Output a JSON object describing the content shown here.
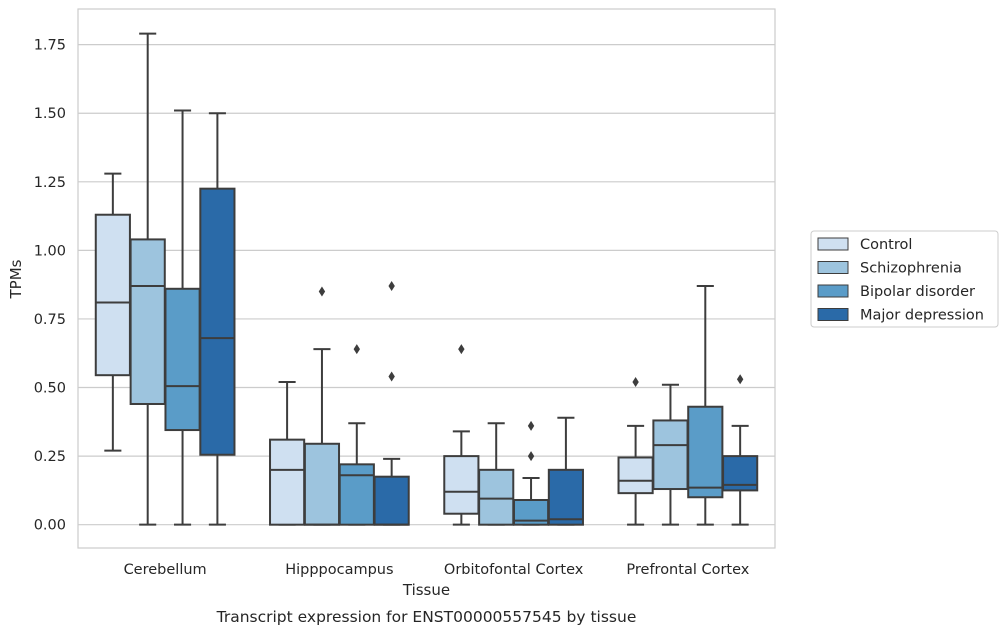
{
  "chart_data": {
    "type": "boxplot",
    "xlabel": "Tissue",
    "ylabel": "TPMs",
    "caption": "Transcript expression for ENST00000557545 by tissue",
    "categories": [
      "Cerebellum",
      "Hipppocampus",
      "Orbitofontal Cortex",
      "Prefrontal Cortex"
    ],
    "ylim": [
      -0.085,
      1.88
    ],
    "yticks": [
      "0.00",
      "0.25",
      "0.50",
      "0.75",
      "1.00",
      "1.25",
      "1.50",
      "1.75"
    ],
    "grid": true,
    "legend_position": "right",
    "colors": {
      "box_edge": "#3d3d3d",
      "grid": "#cccccc",
      "frame": "#cccccc"
    },
    "series": [
      {
        "name": "Control",
        "color": "#cfe0f1",
        "boxes": [
          {
            "whislo": 0.27,
            "q1": 0.545,
            "med": 0.81,
            "q3": 1.13,
            "whishi": 1.28,
            "fliers": []
          },
          {
            "whislo": 0.0,
            "q1": 0.0,
            "med": 0.2,
            "q3": 0.31,
            "whishi": 0.52,
            "fliers": []
          },
          {
            "whislo": 0.0,
            "q1": 0.04,
            "med": 0.12,
            "q3": 0.25,
            "whishi": 0.34,
            "fliers": [
              0.64
            ]
          },
          {
            "whislo": 0.0,
            "q1": 0.115,
            "med": 0.16,
            "q3": 0.245,
            "whishi": 0.36,
            "fliers": [
              0.52
            ]
          }
        ]
      },
      {
        "name": "Schizophrenia",
        "color": "#9dc4de",
        "boxes": [
          {
            "whislo": 0.0,
            "q1": 0.44,
            "med": 0.87,
            "q3": 1.04,
            "whishi": 1.79,
            "fliers": []
          },
          {
            "whislo": 0.0,
            "q1": 0.0,
            "med": 0.0,
            "q3": 0.295,
            "whishi": 0.64,
            "fliers": [
              0.85
            ]
          },
          {
            "whislo": 0.0,
            "q1": 0.0,
            "med": 0.095,
            "q3": 0.2,
            "whishi": 0.37,
            "fliers": []
          },
          {
            "whislo": 0.0,
            "q1": 0.13,
            "med": 0.29,
            "q3": 0.38,
            "whishi": 0.51,
            "fliers": []
          }
        ]
      },
      {
        "name": "Bipolar disorder",
        "color": "#5a9cc8",
        "boxes": [
          {
            "whislo": 0.0,
            "q1": 0.345,
            "med": 0.505,
            "q3": 0.86,
            "whishi": 1.51,
            "fliers": []
          },
          {
            "whislo": 0.0,
            "q1": 0.0,
            "med": 0.18,
            "q3": 0.22,
            "whishi": 0.37,
            "fliers": [
              0.64
            ]
          },
          {
            "whislo": 0.0,
            "q1": 0.0,
            "med": 0.015,
            "q3": 0.09,
            "whishi": 0.17,
            "fliers": [
              0.25,
              0.36
            ]
          },
          {
            "whislo": 0.0,
            "q1": 0.1,
            "med": 0.135,
            "q3": 0.43,
            "whishi": 0.87,
            "fliers": []
          }
        ]
      },
      {
        "name": "Major depression",
        "color": "#2a6aa8",
        "boxes": [
          {
            "whislo": 0.0,
            "q1": 0.255,
            "med": 0.68,
            "q3": 1.225,
            "whishi": 1.5,
            "fliers": []
          },
          {
            "whislo": 0.0,
            "q1": 0.0,
            "med": 0.0,
            "q3": 0.175,
            "whishi": 0.24,
            "fliers": [
              0.54,
              0.87
            ]
          },
          {
            "whislo": 0.0,
            "q1": 0.0,
            "med": 0.02,
            "q3": 0.2,
            "whishi": 0.39,
            "fliers": []
          },
          {
            "whislo": 0.0,
            "q1": 0.125,
            "med": 0.145,
            "q3": 0.25,
            "whishi": 0.36,
            "fliers": [
              0.53
            ]
          }
        ]
      }
    ]
  }
}
